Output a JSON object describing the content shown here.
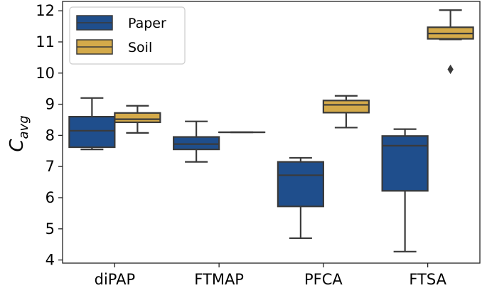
{
  "chart_data": {
    "type": "boxplot",
    "title": "",
    "xlabel": "",
    "ylabel": "C",
    "ylabel_subscript": "avg",
    "ylim": [
      3.9,
      12.3
    ],
    "yticks": [
      4,
      5,
      6,
      7,
      8,
      9,
      10,
      11,
      12
    ],
    "categories": [
      "diPAP",
      "FTMAP",
      "PFCA",
      "FTSA"
    ],
    "grid": false,
    "legend": "top-left",
    "series": [
      {
        "name": "Paper",
        "color": "#1f4e8c",
        "boxes": [
          {
            "whislo": 7.55,
            "q1": 7.62,
            "med": 8.15,
            "q3": 8.6,
            "whishi": 9.2,
            "fliers": []
          },
          {
            "whislo": 7.15,
            "q1": 7.55,
            "med": 7.72,
            "q3": 7.95,
            "whishi": 8.45,
            "fliers": []
          },
          {
            "whislo": 4.7,
            "q1": 5.72,
            "med": 6.72,
            "q3": 7.15,
            "whishi": 7.28,
            "fliers": []
          },
          {
            "whislo": 4.27,
            "q1": 6.22,
            "med": 7.67,
            "q3": 7.98,
            "whishi": 8.2,
            "fliers": []
          }
        ]
      },
      {
        "name": "Soil",
        "color": "#d4aa4a",
        "boxes": [
          {
            "whislo": 8.08,
            "q1": 8.42,
            "med": 8.52,
            "q3": 8.72,
            "whishi": 8.95,
            "fliers": []
          },
          {
            "whislo": 8.1,
            "q1": 8.1,
            "med": 8.1,
            "q3": 8.1,
            "whishi": 8.1,
            "fliers": []
          },
          {
            "whislo": 8.25,
            "q1": 8.73,
            "med": 8.98,
            "q3": 9.12,
            "whishi": 9.27,
            "fliers": []
          },
          {
            "whislo": 11.08,
            "q1": 11.1,
            "med": 11.27,
            "q3": 11.47,
            "whishi": 12.02,
            "fliers": [
              10.12
            ]
          }
        ]
      }
    ]
  }
}
